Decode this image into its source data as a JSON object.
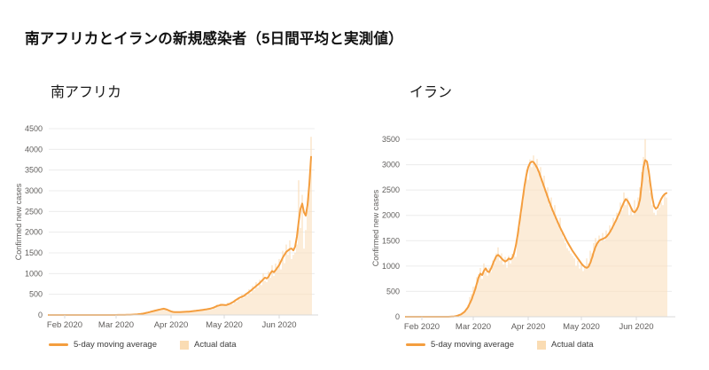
{
  "page": {
    "title": "南アフリカとイランの新規感染者（5日間平均と実測値）"
  },
  "colors": {
    "line": "#F49E3F",
    "bars": "#FBDFBD",
    "legend_square": "#FADCB3",
    "grid": "#ECECEC",
    "axis": "#D8D8D8",
    "tick_text": "#605E5C",
    "title_text": "#111111"
  },
  "chart_data": [
    {
      "type": "line+bar",
      "title": "南アフリカ",
      "ylabel": "Confirmed new cases",
      "ylim": [
        0,
        4500
      ],
      "ytick_step": 500,
      "grid": true,
      "legend_position": "bottom-left",
      "x_domain_days": [
        0,
        150
      ],
      "xticks": [
        {
          "day": 9,
          "label": "Feb 2020"
        },
        {
          "day": 38,
          "label": "Mar 2020"
        },
        {
          "day": 69,
          "label": "Apr 2020"
        },
        {
          "day": 99,
          "label": "May 2020"
        },
        {
          "day": 130,
          "label": "Jun 2020"
        }
      ],
      "series": [
        {
          "name": "5-day moving average",
          "type": "line",
          "points": [
            [
              0,
              0
            ],
            [
              30,
              0
            ],
            [
              38,
              1
            ],
            [
              42,
              2
            ],
            [
              46,
              6
            ],
            [
              50,
              16
            ],
            [
              53,
              32
            ],
            [
              56,
              60
            ],
            [
              59,
              95
            ],
            [
              62,
              126
            ],
            [
              64,
              146
            ],
            [
              65,
              152
            ],
            [
              66,
              140
            ],
            [
              67,
              124
            ],
            [
              68,
              104
            ],
            [
              69,
              88
            ],
            [
              70,
              74
            ],
            [
              72,
              68
            ],
            [
              74,
              70
            ],
            [
              76,
              74
            ],
            [
              79,
              82
            ],
            [
              82,
              96
            ],
            [
              85,
              112
            ],
            [
              88,
              130
            ],
            [
              91,
              152
            ],
            [
              93,
              178
            ],
            [
              95,
              218
            ],
            [
              97,
              242
            ],
            [
              98,
              246
            ],
            [
              100,
              238
            ],
            [
              102,
              268
            ],
            [
              104,
              312
            ],
            [
              106,
              372
            ],
            [
              108,
              424
            ],
            [
              110,
              458
            ],
            [
              112,
              522
            ],
            [
              114,
              588
            ],
            [
              116,
              662
            ],
            [
              118,
              734
            ],
            [
              119,
              772
            ],
            [
              121,
              862
            ],
            [
              122,
              902
            ],
            [
              123,
              882
            ],
            [
              124,
              922
            ],
            [
              125,
              1002
            ],
            [
              126,
              1062
            ],
            [
              127,
              1032
            ],
            [
              128,
              1084
            ],
            [
              130,
              1204
            ],
            [
              132,
              1384
            ],
            [
              134,
              1524
            ],
            [
              136,
              1592
            ],
            [
              137,
              1604
            ],
            [
              138,
              1560
            ],
            [
              139,
              1650
            ],
            [
              140,
              1890
            ],
            [
              141,
              2250
            ],
            [
              142,
              2560
            ],
            [
              143,
              2692
            ],
            [
              144,
              2480
            ],
            [
              145,
              2400
            ],
            [
              146,
              2660
            ],
            [
              147,
              3150
            ],
            [
              148,
              3820
            ]
          ]
        },
        {
          "name": "Actual data",
          "type": "bar",
          "start_day": 42,
          "values": [
            3,
            2,
            6,
            8,
            5,
            10,
            13,
            16,
            18,
            25,
            32,
            40,
            48,
            62,
            75,
            84,
            96,
            105,
            130,
            116,
            142,
            130,
            162,
            145,
            122,
            100,
            86,
            72,
            64,
            82,
            58,
            76,
            84,
            66,
            92,
            70,
            96,
            74,
            90,
            104,
            82,
            112,
            98,
            126,
            104,
            142,
            118,
            146,
            130,
            172,
            136,
            198,
            162,
            252,
            206,
            282,
            232,
            262,
            216,
            302,
            242,
            320,
            262,
            372,
            322,
            434,
            382,
            502,
            412,
            532,
            472,
            622,
            528,
            702,
            602,
            792,
            662,
            852,
            722,
            1002,
            822,
            792,
            1052,
            902,
            1202,
            942,
            1242,
            1162,
            1352,
            1102,
            1552,
            1252,
            1702,
            1452,
            1802,
            1352,
            1452,
            1502,
            1702,
            3252,
            2102,
            2902,
            1602,
            2052,
            2752,
            3202,
            4302
          ]
        }
      ]
    },
    {
      "type": "line+bar",
      "title": "イラン",
      "ylabel": "Confirmed new cases",
      "ylim": [
        0,
        3500
      ],
      "ytick_step": 500,
      "grid": true,
      "legend_position": "bottom-left",
      "x_domain_days": [
        0,
        150
      ],
      "xticks": [
        {
          "day": 9,
          "label": "Feb 2020"
        },
        {
          "day": 38,
          "label": "Mar 2020"
        },
        {
          "day": 69,
          "label": "Apr 2020"
        },
        {
          "day": 99,
          "label": "May 2020"
        },
        {
          "day": 130,
          "label": "Jun 2020"
        }
      ],
      "series": [
        {
          "name": "5-day moving average",
          "type": "line",
          "points": [
            [
              0,
              0
            ],
            [
              24,
              0
            ],
            [
              27,
              5
            ],
            [
              29,
              20
            ],
            [
              31,
              45
            ],
            [
              33,
              95
            ],
            [
              35,
              185
            ],
            [
              37,
              335
            ],
            [
              39,
              530
            ],
            [
              40,
              655
            ],
            [
              41,
              775
            ],
            [
              42,
              850
            ],
            [
              43,
              822
            ],
            [
              44,
              905
            ],
            [
              45,
              955
            ],
            [
              46,
              895
            ],
            [
              47,
              880
            ],
            [
              48,
              950
            ],
            [
              49,
              1035
            ],
            [
              50,
              1120
            ],
            [
              51,
              1195
            ],
            [
              52,
              1220
            ],
            [
              53,
              1190
            ],
            [
              54,
              1150
            ],
            [
              55,
              1115
            ],
            [
              56,
              1090
            ],
            [
              57,
              1110
            ],
            [
              58,
              1150
            ],
            [
              59,
              1130
            ],
            [
              60,
              1160
            ],
            [
              61,
              1250
            ],
            [
              62,
              1400
            ],
            [
              63,
              1600
            ],
            [
              64,
              1850
            ],
            [
              65,
              2100
            ],
            [
              66,
              2350
            ],
            [
              67,
              2600
            ],
            [
              68,
              2800
            ],
            [
              69,
              2950
            ],
            [
              70,
              3030
            ],
            [
              71,
              3060
            ],
            [
              72,
              3050
            ],
            [
              73,
              3000
            ],
            [
              74,
              2940
            ],
            [
              75,
              2860
            ],
            [
              76,
              2760
            ],
            [
              77,
              2660
            ],
            [
              78,
              2560
            ],
            [
              79,
              2460
            ],
            [
              80,
              2360
            ],
            [
              81,
              2260
            ],
            [
              82,
              2170
            ],
            [
              83,
              2080
            ],
            [
              84,
              2000
            ],
            [
              85,
              1920
            ],
            [
              86,
              1840
            ],
            [
              87,
              1760
            ],
            [
              88,
              1690
            ],
            [
              89,
              1620
            ],
            [
              90,
              1550
            ],
            [
              91,
              1480
            ],
            [
              92,
              1420
            ],
            [
              93,
              1360
            ],
            [
              94,
              1300
            ],
            [
              95,
              1250
            ],
            [
              96,
              1200
            ],
            [
              97,
              1150
            ],
            [
              98,
              1100
            ],
            [
              99,
              1050
            ],
            [
              100,
              1010
            ],
            [
              101,
              980
            ],
            [
              102,
              965
            ],
            [
              103,
              985
            ],
            [
              104,
              1060
            ],
            [
              105,
              1160
            ],
            [
              106,
              1280
            ],
            [
              107,
              1380
            ],
            [
              108,
              1450
            ],
            [
              109,
              1500
            ],
            [
              110,
              1520
            ],
            [
              111,
              1535
            ],
            [
              112,
              1550
            ],
            [
              113,
              1575
            ],
            [
              114,
              1615
            ],
            [
              115,
              1665
            ],
            [
              116,
              1725
            ],
            [
              117,
              1795
            ],
            [
              118,
              1865
            ],
            [
              119,
              1935
            ],
            [
              120,
              2015
            ],
            [
              121,
              2095
            ],
            [
              122,
              2180
            ],
            [
              123,
              2260
            ],
            [
              124,
              2320
            ],
            [
              125,
              2290
            ],
            [
              126,
              2230
            ],
            [
              127,
              2150
            ],
            [
              128,
              2080
            ],
            [
              129,
              2060
            ],
            [
              130,
              2100
            ],
            [
              131,
              2170
            ],
            [
              132,
              2300
            ],
            [
              133,
              2600
            ],
            [
              134,
              2950
            ],
            [
              135,
              3090
            ],
            [
              136,
              3060
            ],
            [
              137,
              2870
            ],
            [
              138,
              2600
            ],
            [
              139,
              2350
            ],
            [
              140,
              2180
            ],
            [
              141,
              2130
            ],
            [
              142,
              2160
            ],
            [
              143,
              2240
            ],
            [
              144,
              2320
            ],
            [
              145,
              2380
            ],
            [
              146,
              2420
            ],
            [
              147,
              2440
            ]
          ]
        },
        {
          "name": "Actual data",
          "type": "bar",
          "start_day": 27,
          "values": [
            6,
            10,
            20,
            32,
            56,
            78,
            112,
            162,
            225,
            388,
            452,
            592,
            598,
            782,
            838,
            962,
            748,
            1052,
            882,
            812,
            968,
            882,
            1112,
            1052,
            1252,
            1368,
            1112,
            1252,
            1032,
            1182,
            972,
            1202,
            1052,
            1242,
            1302,
            1182,
            1552,
            1752,
            2052,
            2282,
            2552,
            2902,
            2702,
            3102,
            2952,
            3182,
            2982,
            3112,
            2852,
            2952,
            2652,
            2782,
            2452,
            2552,
            2202,
            2352,
            2052,
            2202,
            1902,
            1852,
            1952,
            1652,
            1552,
            1452,
            1352,
            1302,
            1252,
            1202,
            1152,
            1002,
            1102,
            952,
            1052,
            902,
            1002,
            1152,
            1052,
            1302,
            1252,
            1452,
            1552,
            1452,
            1602,
            1482,
            1652,
            1502,
            1702,
            1602,
            1802,
            1702,
            1952,
            1852,
            2052,
            1952,
            2252,
            2102,
            2452,
            2202,
            2352,
            2002,
            2152,
            2002,
            2302,
            2102,
            2352,
            2552,
            2852,
            3152,
            3502,
            2952,
            2702,
            2452,
            2202,
            2052,
            2002,
            2102,
            2152,
            2252,
            2202,
            2402,
            2352
          ]
        }
      ]
    }
  ]
}
